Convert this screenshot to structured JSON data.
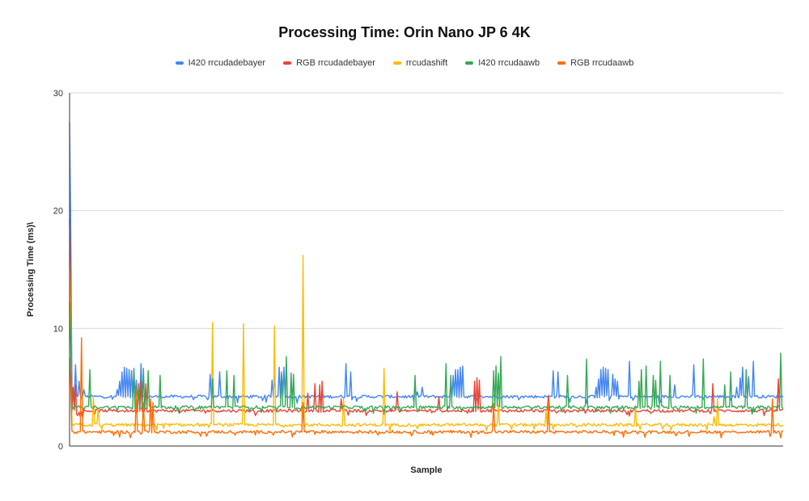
{
  "chart_data": {
    "type": "line",
    "title": "Processing Time: Orin Nano JP 6 4K",
    "xlabel": "Sample",
    "ylabel": "Processing Time (ms)\\",
    "ylim": [
      0,
      30
    ],
    "yticks": [
      0,
      10,
      20,
      30
    ],
    "grid": true,
    "legend_position": "top",
    "sample_count": 600,
    "series": [
      {
        "name": "I420 rrcudadebayer",
        "color": "#4285F4",
        "baseline": 4.2,
        "initial_spike": 27.5,
        "spikes": [
          [
            2,
            5.0
          ],
          [
            5,
            6.9
          ],
          [
            8,
            5.5
          ],
          [
            12,
            4.8
          ],
          [
            40,
            4.8
          ],
          [
            42,
            5.5
          ],
          [
            44,
            6.3
          ],
          [
            46,
            6.7
          ],
          [
            48,
            6.6
          ],
          [
            50,
            6.5
          ],
          [
            52,
            6.4
          ],
          [
            54,
            6.6
          ],
          [
            56,
            5.6
          ],
          [
            60,
            7.0
          ],
          [
            118,
            6.1
          ],
          [
            126,
            6.3
          ],
          [
            170,
            5.6
          ],
          [
            172,
            6.0
          ],
          [
            176,
            6.7
          ],
          [
            178,
            6.3
          ],
          [
            180,
            6.7
          ],
          [
            232,
            7.0
          ],
          [
            236,
            6.3
          ],
          [
            290,
            5.3
          ],
          [
            292,
            4.6
          ],
          [
            296,
            5.0
          ],
          [
            320,
            5.2
          ],
          [
            322,
            6.0
          ],
          [
            324,
            6.5
          ],
          [
            326,
            6.5
          ],
          [
            328,
            6.7
          ],
          [
            330,
            6.8
          ],
          [
            406,
            6.4
          ],
          [
            410,
            6.3
          ],
          [
            442,
            5.0
          ],
          [
            444,
            5.7
          ],
          [
            446,
            6.5
          ],
          [
            448,
            6.7
          ],
          [
            450,
            6.6
          ],
          [
            452,
            6.5
          ],
          [
            456,
            6.1
          ],
          [
            458,
            5.7
          ],
          [
            460,
            5.5
          ],
          [
            470,
            7.2
          ],
          [
            508,
            5.2
          ],
          [
            524,
            6.9
          ],
          [
            560,
            5.0
          ],
          [
            563,
            5.8
          ],
          [
            565,
            6.7
          ],
          [
            570,
            5.9
          ],
          [
            574,
            7.2
          ]
        ]
      },
      {
        "name": "RGB rrcudadebayer",
        "color": "#EA4335",
        "baseline": 3.0,
        "initial_spike": 19.3,
        "spikes": [
          [
            3,
            5.0
          ],
          [
            5,
            5.2
          ],
          [
            58,
            5.3
          ],
          [
            60,
            5.5
          ],
          [
            64,
            5.3
          ],
          [
            200,
            4.5
          ],
          [
            206,
            5.3
          ],
          [
            210,
            5.2
          ],
          [
            212,
            5.5
          ],
          [
            228,
            4.0
          ],
          [
            275,
            4.6
          ],
          [
            310,
            4.2
          ],
          [
            340,
            5.5
          ],
          [
            342,
            5.8
          ],
          [
            344,
            5.6
          ],
          [
            355,
            3.5
          ],
          [
            402,
            4.3
          ],
          [
            540,
            5.3
          ],
          [
            595,
            5.7
          ]
        ]
      },
      {
        "name": "rrcudashift",
        "color": "#FBBC04",
        "baseline": 1.8,
        "initial_spike": 15.8,
        "spikes": [
          [
            20,
            4.2
          ],
          [
            24,
            3.2
          ],
          [
            120,
            10.5
          ],
          [
            146,
            10.4
          ],
          [
            172,
            10.2
          ],
          [
            196,
            16.2
          ],
          [
            230,
            4.0
          ],
          [
            264,
            6.6
          ],
          [
            360,
            3.5
          ],
          [
            400,
            3.0
          ],
          [
            475,
            3.3
          ],
          [
            541,
            2.5
          ],
          [
            544,
            4.0
          ]
        ]
      },
      {
        "name": "I420 rrcudaawb",
        "color": "#34A853",
        "baseline": 3.3,
        "initial_spike": 12.2,
        "spikes": [
          [
            17,
            6.5
          ],
          [
            54,
            6.4
          ],
          [
            58,
            5.0
          ],
          [
            62,
            6.6
          ],
          [
            66,
            6.4
          ],
          [
            76,
            6.0
          ],
          [
            120,
            5.7
          ],
          [
            132,
            6.4
          ],
          [
            138,
            6.0
          ],
          [
            178,
            6.0
          ],
          [
            182,
            7.6
          ],
          [
            186,
            6.2
          ],
          [
            188,
            6.1
          ],
          [
            290,
            6.0
          ],
          [
            316,
            7.0
          ],
          [
            320,
            6.0
          ],
          [
            356,
            6.4
          ],
          [
            358,
            6.8
          ],
          [
            360,
            6.2
          ],
          [
            362,
            7.6
          ],
          [
            418,
            6.0
          ],
          [
            434,
            7.4
          ],
          [
            478,
            5.5
          ],
          [
            480,
            6.5
          ],
          [
            484,
            6.8
          ],
          [
            490,
            6.0
          ],
          [
            492,
            5.6
          ],
          [
            496,
            7.2
          ],
          [
            504,
            6.0
          ],
          [
            532,
            7.4
          ],
          [
            550,
            5.2
          ],
          [
            555,
            6.3
          ],
          [
            568,
            6.5
          ],
          [
            597,
            7.9
          ]
        ]
      },
      {
        "name": "RGB rrcudaawb",
        "color": "#FF6D01",
        "baseline": 1.2,
        "initial_spike": 7.5,
        "spikes": [
          [
            10,
            9.2
          ],
          [
            56,
            4.8
          ],
          [
            62,
            3.7
          ],
          [
            68,
            4.0
          ],
          [
            70,
            3.7
          ],
          [
            196,
            3.7
          ],
          [
            356,
            3.6
          ],
          [
            402,
            3.8
          ],
          [
            590,
            4.0
          ]
        ]
      }
    ]
  }
}
